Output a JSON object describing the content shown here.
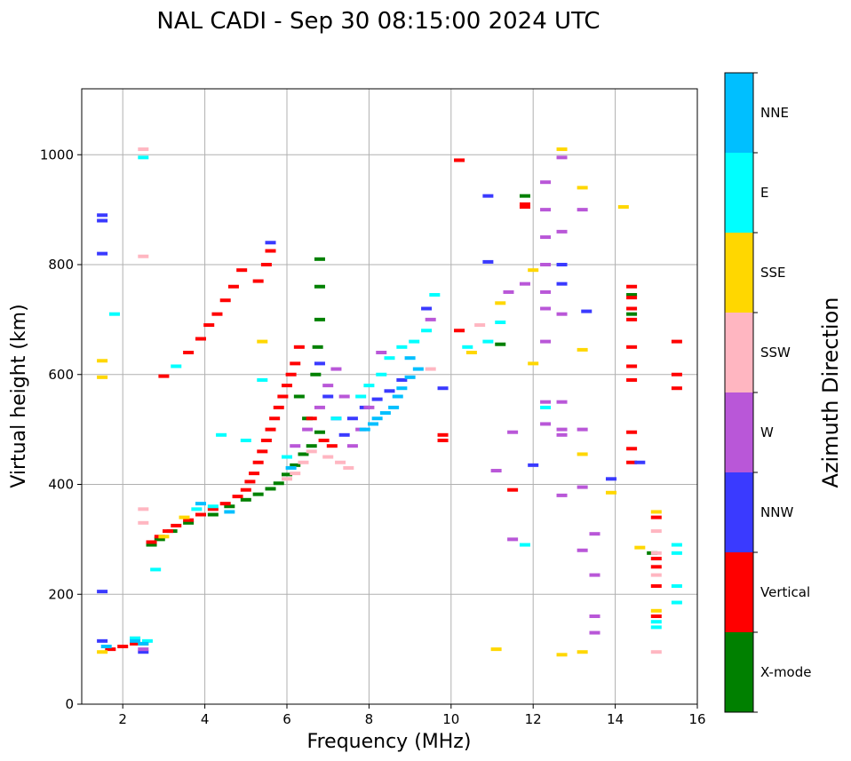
{
  "chart_data": {
    "type": "scatter",
    "title": "NAL CADI - Sep 30 08:15:00 2024 UTC",
    "xlabel": "Frequency (MHz)",
    "ylabel": "Virtual height (km)",
    "xlim": [
      1,
      16
    ],
    "ylim": [
      0,
      1120
    ],
    "xticks": [
      2,
      4,
      6,
      8,
      10,
      12,
      14,
      16
    ],
    "yticks": [
      0,
      200,
      400,
      600,
      800,
      1000
    ],
    "grid": true,
    "colorbar": {
      "label": "Azimuth Direction",
      "categories": [
        {
          "name": "X-mode",
          "color": "#008000"
        },
        {
          "name": "Vertical",
          "color": "#ff0000"
        },
        {
          "name": "NNW",
          "color": "#3a3aff"
        },
        {
          "name": "W",
          "color": "#b957d8"
        },
        {
          "name": "SSW",
          "color": "#ffb6c1"
        },
        {
          "name": "SSE",
          "color": "#ffd700"
        },
        {
          "name": "E",
          "color": "#00ffff"
        },
        {
          "name": "NNE",
          "color": "#00bfff"
        }
      ]
    },
    "series": [
      {
        "name": "X-mode",
        "points": [
          [
            2.7,
            290
          ],
          [
            2.9,
            300
          ],
          [
            3.2,
            315
          ],
          [
            3.6,
            330
          ],
          [
            4.2,
            345
          ],
          [
            4.6,
            360
          ],
          [
            5.0,
            372
          ],
          [
            5.3,
            382
          ],
          [
            5.6,
            392
          ],
          [
            5.8,
            402
          ],
          [
            6.0,
            418
          ],
          [
            6.2,
            435
          ],
          [
            6.4,
            455
          ],
          [
            6.6,
            470
          ],
          [
            6.8,
            495
          ],
          [
            6.5,
            520
          ],
          [
            6.3,
            560
          ],
          [
            6.7,
            600
          ],
          [
            6.75,
            650
          ],
          [
            6.8,
            700
          ],
          [
            6.8,
            760
          ],
          [
            6.8,
            810
          ],
          [
            11.2,
            655
          ],
          [
            11.8,
            925
          ],
          [
            14.4,
            745
          ],
          [
            14.4,
            710
          ],
          [
            14.9,
            275
          ]
        ]
      },
      {
        "name": "Vertical",
        "points": [
          [
            1.7,
            100
          ],
          [
            2.0,
            105
          ],
          [
            2.3,
            110
          ],
          [
            2.7,
            295
          ],
          [
            2.9,
            305
          ],
          [
            3.1,
            315
          ],
          [
            3.3,
            325
          ],
          [
            3.6,
            335
          ],
          [
            3.9,
            345
          ],
          [
            4.2,
            355
          ],
          [
            4.5,
            365
          ],
          [
            4.8,
            378
          ],
          [
            5.0,
            390
          ],
          [
            5.1,
            405
          ],
          [
            5.2,
            420
          ],
          [
            5.3,
            440
          ],
          [
            5.4,
            460
          ],
          [
            5.5,
            480
          ],
          [
            5.6,
            500
          ],
          [
            5.7,
            520
          ],
          [
            5.8,
            540
          ],
          [
            5.9,
            560
          ],
          [
            6.0,
            580
          ],
          [
            6.1,
            600
          ],
          [
            6.2,
            620
          ],
          [
            6.3,
            650
          ],
          [
            3.0,
            597
          ],
          [
            3.6,
            640
          ],
          [
            3.9,
            665
          ],
          [
            4.1,
            690
          ],
          [
            4.3,
            710
          ],
          [
            4.5,
            735
          ],
          [
            4.7,
            760
          ],
          [
            4.9,
            790
          ],
          [
            5.3,
            770
          ],
          [
            5.5,
            800
          ],
          [
            5.6,
            825
          ],
          [
            6.6,
            520
          ],
          [
            6.9,
            480
          ],
          [
            7.1,
            470
          ],
          [
            9.8,
            490
          ],
          [
            9.8,
            480
          ],
          [
            10.2,
            990
          ],
          [
            10.2,
            680
          ],
          [
            11.5,
            390
          ],
          [
            11.8,
            910
          ],
          [
            11.8,
            905
          ],
          [
            14.4,
            760
          ],
          [
            14.4,
            740
          ],
          [
            14.4,
            720
          ],
          [
            14.4,
            700
          ],
          [
            14.4,
            650
          ],
          [
            14.4,
            615
          ],
          [
            14.4,
            590
          ],
          [
            14.4,
            495
          ],
          [
            14.4,
            465
          ],
          [
            14.4,
            440
          ],
          [
            15.0,
            340
          ],
          [
            15.0,
            265
          ],
          [
            15.0,
            250
          ],
          [
            15.0,
            215
          ],
          [
            15.0,
            160
          ],
          [
            15.5,
            660
          ],
          [
            15.5,
            600
          ],
          [
            15.5,
            575
          ]
        ]
      },
      {
        "name": "NNW",
        "points": [
          [
            1.5,
            890
          ],
          [
            1.5,
            880
          ],
          [
            1.5,
            820
          ],
          [
            1.5,
            205
          ],
          [
            1.5,
            115
          ],
          [
            2.5,
            95
          ],
          [
            5.6,
            840
          ],
          [
            6.8,
            620
          ],
          [
            7.0,
            560
          ],
          [
            7.2,
            520
          ],
          [
            7.4,
            490
          ],
          [
            7.6,
            520
          ],
          [
            7.9,
            540
          ],
          [
            8.2,
            555
          ],
          [
            8.5,
            570
          ],
          [
            8.8,
            590
          ],
          [
            9.4,
            720
          ],
          [
            9.8,
            575
          ],
          [
            10.9,
            925
          ],
          [
            10.9,
            805
          ],
          [
            12.0,
            435
          ],
          [
            12.7,
            800
          ],
          [
            12.7,
            765
          ],
          [
            13.3,
            715
          ],
          [
            13.9,
            410
          ],
          [
            14.6,
            440
          ]
        ]
      },
      {
        "name": "W",
        "points": [
          [
            2.5,
            100
          ],
          [
            6.2,
            470
          ],
          [
            6.5,
            500
          ],
          [
            6.8,
            540
          ],
          [
            7.0,
            580
          ],
          [
            7.2,
            610
          ],
          [
            7.4,
            560
          ],
          [
            7.6,
            470
          ],
          [
            7.8,
            500
          ],
          [
            8.0,
            540
          ],
          [
            8.3,
            640
          ],
          [
            9.5,
            700
          ],
          [
            11.1,
            425
          ],
          [
            11.4,
            750
          ],
          [
            11.5,
            495
          ],
          [
            11.5,
            300
          ],
          [
            11.8,
            765
          ],
          [
            12.3,
            950
          ],
          [
            12.3,
            900
          ],
          [
            12.3,
            850
          ],
          [
            12.3,
            800
          ],
          [
            12.3,
            750
          ],
          [
            12.3,
            720
          ],
          [
            12.3,
            660
          ],
          [
            12.3,
            550
          ],
          [
            12.3,
            510
          ],
          [
            12.7,
            995
          ],
          [
            12.7,
            860
          ],
          [
            12.7,
            710
          ],
          [
            12.7,
            550
          ],
          [
            12.7,
            500
          ],
          [
            12.7,
            490
          ],
          [
            12.7,
            380
          ],
          [
            13.2,
            900
          ],
          [
            13.2,
            500
          ],
          [
            13.2,
            395
          ],
          [
            13.2,
            280
          ],
          [
            13.5,
            310
          ],
          [
            13.5,
            235
          ],
          [
            13.5,
            160
          ],
          [
            13.5,
            130
          ]
        ]
      },
      {
        "name": "SSW",
        "points": [
          [
            2.3,
            120
          ],
          [
            2.5,
            330
          ],
          [
            2.5,
            355
          ],
          [
            2.5,
            815
          ],
          [
            2.5,
            1010
          ],
          [
            6.0,
            410
          ],
          [
            6.2,
            420
          ],
          [
            6.4,
            440
          ],
          [
            6.6,
            460
          ],
          [
            7.0,
            450
          ],
          [
            7.3,
            440
          ],
          [
            7.5,
            430
          ],
          [
            9.5,
            610
          ],
          [
            10.7,
            690
          ],
          [
            15.0,
            315
          ],
          [
            15.0,
            275
          ],
          [
            15.0,
            235
          ],
          [
            15.0,
            95
          ]
        ]
      },
      {
        "name": "SSE",
        "points": [
          [
            1.5,
            625
          ],
          [
            1.5,
            595
          ],
          [
            1.5,
            95
          ],
          [
            2.5,
            110
          ],
          [
            3.0,
            305
          ],
          [
            3.5,
            340
          ],
          [
            5.4,
            660
          ],
          [
            10.5,
            640
          ],
          [
            11.1,
            100
          ],
          [
            11.2,
            730
          ],
          [
            12.0,
            790
          ],
          [
            12.0,
            620
          ],
          [
            12.7,
            1010
          ],
          [
            12.7,
            90
          ],
          [
            13.2,
            940
          ],
          [
            13.2,
            645
          ],
          [
            13.2,
            455
          ],
          [
            13.2,
            95
          ],
          [
            13.9,
            385
          ],
          [
            14.2,
            905
          ],
          [
            14.6,
            285
          ],
          [
            15.0,
            350
          ],
          [
            15.0,
            170
          ]
        ]
      },
      {
        "name": "E",
        "points": [
          [
            2.5,
            995
          ],
          [
            1.8,
            710
          ],
          [
            2.3,
            120
          ],
          [
            2.6,
            115
          ],
          [
            2.8,
            245
          ],
          [
            3.3,
            615
          ],
          [
            3.8,
            355
          ],
          [
            4.2,
            360
          ],
          [
            4.4,
            490
          ],
          [
            5.0,
            480
          ],
          [
            5.4,
            590
          ],
          [
            6.0,
            450
          ],
          [
            7.2,
            520
          ],
          [
            7.8,
            560
          ],
          [
            8.0,
            580
          ],
          [
            8.3,
            600
          ],
          [
            8.5,
            630
          ],
          [
            8.8,
            650
          ],
          [
            9.1,
            660
          ],
          [
            9.4,
            680
          ],
          [
            9.6,
            745
          ],
          [
            10.4,
            650
          ],
          [
            10.9,
            660
          ],
          [
            11.2,
            695
          ],
          [
            11.8,
            290
          ],
          [
            12.3,
            540
          ],
          [
            15.0,
            150
          ],
          [
            15.0,
            140
          ],
          [
            15.5,
            290
          ],
          [
            15.5,
            275
          ],
          [
            15.5,
            215
          ],
          [
            15.5,
            185
          ]
        ]
      },
      {
        "name": "NNE",
        "points": [
          [
            1.6,
            105
          ],
          [
            2.3,
            115
          ],
          [
            2.5,
            110
          ],
          [
            3.9,
            365
          ],
          [
            4.6,
            350
          ],
          [
            6.1,
            430
          ],
          [
            7.9,
            500
          ],
          [
            8.1,
            510
          ],
          [
            8.2,
            520
          ],
          [
            8.4,
            530
          ],
          [
            8.6,
            540
          ],
          [
            8.7,
            560
          ],
          [
            8.8,
            575
          ],
          [
            9.0,
            595
          ],
          [
            9.2,
            610
          ],
          [
            9.0,
            630
          ]
        ]
      }
    ]
  }
}
